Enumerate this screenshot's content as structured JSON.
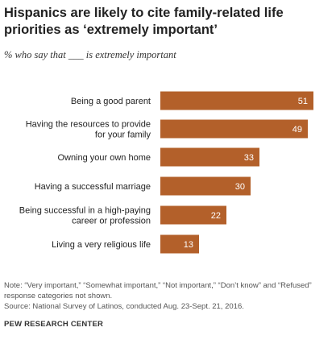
{
  "chart_data": {
    "type": "bar",
    "orientation": "horizontal",
    "title": "Hispanics are likely to cite family-related life priorities as ‘extremely important’",
    "subtitle": "% who say that ___ is extremely important",
    "categories": [
      [
        "Being a good parent"
      ],
      [
        "Having the resources to provide",
        "for your family"
      ],
      [
        "Owning your own home"
      ],
      [
        "Having a successful marriage"
      ],
      [
        "Being successful in a high-paying",
        "career or profession"
      ],
      [
        "Living a very religious life"
      ]
    ],
    "values": [
      51,
      49,
      33,
      30,
      22,
      13
    ],
    "bar_color": "#b3602a",
    "label_color": "#ffffff",
    "xlim": [
      0,
      51
    ],
    "grid": false,
    "legend": "none"
  },
  "note": "Note: “Very important,” “Somewhat important,” “Not important,” “Don’t know” and “Refused” response categories not shown.",
  "source": "Source: National Survey of Latinos, conducted Aug. 23-Sept. 21, 2016.",
  "credit": "PEW RESEARCH CENTER"
}
